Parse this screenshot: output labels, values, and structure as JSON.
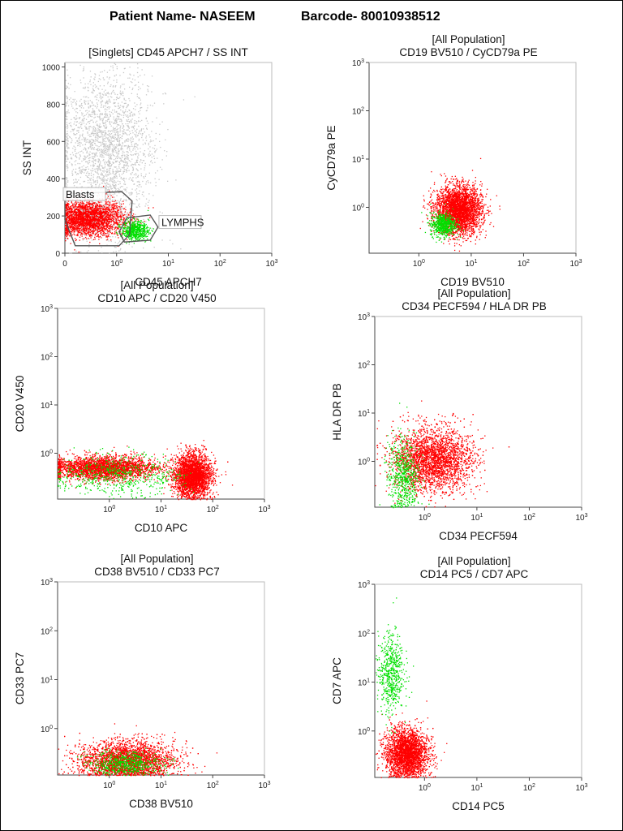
{
  "header": {
    "patient_label": "Patient Name- NASEEM",
    "barcode_label": "Barcode- 80010938512"
  },
  "colors": {
    "blasts": "#ff0000",
    "lymphs": "#00e000",
    "gate_stroke": "#555555",
    "background_events": "#c8c8c8"
  },
  "chart_data": [
    {
      "id": "p1",
      "type": "scatter",
      "title_lines": [
        "[Singlets] CD45 APCH7 / SS INT"
      ],
      "xlabel": "CD45 APCH7",
      "ylabel": "SS INT",
      "xscale": "log",
      "yscale": "linear",
      "xlim": [
        -1.0,
        3
      ],
      "ylim": [
        0,
        1024
      ],
      "xticks": [
        "0",
        "10^0",
        "10^1",
        "10^2",
        "10^3"
      ],
      "yticks": [
        "0",
        "200",
        "400",
        "600",
        "800",
        "1000"
      ],
      "gates": [
        {
          "name": "Blasts",
          "polygon": [
            [
              -0.85,
              320
            ],
            [
              0.1,
              330
            ],
            [
              0.3,
              280
            ],
            [
              0.25,
              100
            ],
            [
              0.05,
              40
            ],
            [
              -0.8,
              40
            ],
            [
              -1.0,
              180
            ],
            [
              -1.0,
              290
            ]
          ]
        },
        {
          "name": "LYMPHS",
          "polygon": [
            [
              0.2,
              190
            ],
            [
              0.65,
              205
            ],
            [
              0.8,
              140
            ],
            [
              0.65,
              70
            ],
            [
              0.15,
              60
            ],
            [
              0.05,
              115
            ]
          ]
        }
      ],
      "populations": [
        {
          "name": "Blasts",
          "color": "red",
          "center": [
            -0.55,
            190
          ],
          "spread": [
            0.33,
            45
          ]
        },
        {
          "name": "LYMPHS",
          "color": "green",
          "center": [
            0.35,
            125
          ],
          "spread": [
            0.13,
            25
          ]
        },
        {
          "name": "Other",
          "color": "gray",
          "center": [
            -0.2,
            550
          ],
          "spread": [
            0.45,
            230
          ]
        }
      ]
    },
    {
      "id": "p2",
      "type": "scatter",
      "title_lines": [
        "[All Population]",
        "CD19 BV510 / CyCD79a PE"
      ],
      "xlabel": "CD19 BV510",
      "ylabel": "CyCD79a PE",
      "xscale": "log",
      "yscale": "log",
      "xlim": [
        -0.95,
        3
      ],
      "ylim": [
        -0.95,
        3
      ],
      "xticks": [
        "10^0",
        "10^1",
        "10^2",
        "10^3"
      ],
      "yticks": [
        "10^0",
        "10^1",
        "10^2",
        "10^3"
      ],
      "populations": [
        {
          "name": "Blasts",
          "color": "red",
          "center": [
            0.75,
            -0.05
          ],
          "spread": [
            0.22,
            0.25
          ]
        },
        {
          "name": "LYMPHS",
          "color": "green",
          "center": [
            0.45,
            -0.35
          ],
          "spread": [
            0.12,
            0.12
          ]
        }
      ]
    },
    {
      "id": "p3",
      "type": "scatter",
      "title_lines": [
        "[All Population]",
        "CD10 APC / CD20 V450"
      ],
      "xlabel": "CD10 APC",
      "ylabel": "CD20 V450",
      "xscale": "log",
      "yscale": "log",
      "xlim": [
        -1.0,
        3
      ],
      "ylim": [
        -0.95,
        3
      ],
      "xticks": [
        "10^0",
        "10^1",
        "10^2",
        "10^3"
      ],
      "yticks": [
        "10^0",
        "10^1",
        "10^2",
        "10^3"
      ],
      "populations": [
        {
          "name": "Blasts",
          "color": "red",
          "center": [
            1.6,
            -0.45
          ],
          "spread": [
            0.18,
            0.22
          ]
        },
        {
          "name": "Other",
          "color": "red",
          "center": [
            -0.1,
            -0.3
          ],
          "spread": [
            0.5,
            0.12
          ]
        },
        {
          "name": "LYMPHS",
          "color": "green",
          "center": [
            0.2,
            -0.45
          ],
          "spread": [
            0.6,
            0.2
          ]
        }
      ]
    },
    {
      "id": "p4",
      "type": "scatter",
      "title_lines": [
        "[All Population]",
        "CD34 PECF594 / HLA DR PB"
      ],
      "xlabel": "CD34 PECF594",
      "ylabel": "HLA DR PB",
      "xscale": "log",
      "yscale": "log",
      "xlim": [
        -0.95,
        3
      ],
      "ylim": [
        -0.95,
        3
      ],
      "xticks": [
        "10^0",
        "10^1",
        "10^2",
        "10^3"
      ],
      "yticks": [
        "10^0",
        "10^1",
        "10^2",
        "10^3"
      ],
      "populations": [
        {
          "name": "Blasts",
          "color": "red",
          "center": [
            0.15,
            0.05
          ],
          "spread": [
            0.38,
            0.32
          ]
        },
        {
          "name": "LYMPHS",
          "color": "green",
          "center": [
            -0.4,
            -0.3
          ],
          "spread": [
            0.15,
            0.4
          ]
        }
      ]
    },
    {
      "id": "p5",
      "type": "scatter",
      "title_lines": [
        "[All Population]",
        "CD38 BV510 / CD33 PC7"
      ],
      "xlabel": "CD38 BV510",
      "ylabel": "CD33 PC7",
      "xscale": "log",
      "yscale": "log",
      "xlim": [
        -1.0,
        3
      ],
      "ylim": [
        -0.95,
        3
      ],
      "xticks": [
        "10^0",
        "10^1",
        "10^2",
        "10^3"
      ],
      "yticks": [
        "10^0",
        "10^1",
        "10^2",
        "10^3"
      ],
      "populations": [
        {
          "name": "Blasts",
          "color": "red",
          "center": [
            0.35,
            -0.65
          ],
          "spread": [
            0.45,
            0.2
          ]
        },
        {
          "name": "LYMPHS",
          "color": "green",
          "center": [
            0.3,
            -0.7
          ],
          "spread": [
            0.35,
            0.12
          ]
        }
      ]
    },
    {
      "id": "p6",
      "type": "scatter",
      "title_lines": [
        "[All Population]",
        "CD14 PC5 / CD7 APC"
      ],
      "xlabel": "CD14 PC5",
      "ylabel": "CD7 APC",
      "xscale": "log",
      "yscale": "log",
      "xlim": [
        -0.95,
        3
      ],
      "ylim": [
        -0.95,
        3
      ],
      "xticks": [
        "10^0",
        "10^1",
        "10^2",
        "10^3"
      ],
      "yticks": [
        "10^0",
        "10^1",
        "10^2",
        "10^3"
      ],
      "populations": [
        {
          "name": "Blasts",
          "color": "red",
          "center": [
            -0.35,
            -0.45
          ],
          "spread": [
            0.2,
            0.25
          ]
        },
        {
          "name": "LYMPHS",
          "color": "green",
          "center": [
            -0.65,
            1.2
          ],
          "spread": [
            0.12,
            0.4
          ]
        }
      ]
    }
  ]
}
